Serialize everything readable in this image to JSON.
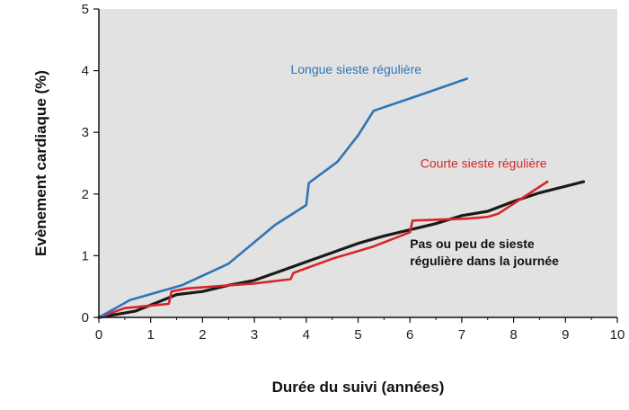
{
  "chart_data": {
    "type": "line",
    "xlabel": "Durée du suivi (années)",
    "ylabel": "Evènement cardiaque (%)",
    "xlim": [
      0,
      10
    ],
    "ylim": [
      0,
      5
    ],
    "xticks": [
      "0",
      "1",
      "2",
      "3",
      "4",
      "5",
      "6",
      "7",
      "8",
      "9",
      "10"
    ],
    "yticks": [
      "0",
      "1",
      "2",
      "3",
      "4",
      "5"
    ],
    "grid": false,
    "background": "#e2e2e2",
    "series": [
      {
        "name": "Longue sieste régulière",
        "color": "#2e75b6",
        "x": [
          0,
          0.6,
          1.6,
          2.5,
          3.4,
          4.0,
          4.05,
          4.6,
          5.0,
          5.3,
          6.0,
          7.1
        ],
        "y": [
          0,
          0.28,
          0.52,
          0.87,
          1.5,
          1.82,
          2.18,
          2.52,
          2.95,
          3.35,
          3.55,
          3.87
        ]
      },
      {
        "name": "Courte sieste régulière",
        "color": "#d7262b",
        "x": [
          0,
          0.5,
          1.35,
          1.4,
          1.7,
          2.2,
          3.0,
          3.7,
          3.75,
          4.5,
          5.3,
          6.0,
          6.05,
          7.1,
          7.5,
          7.7,
          8.65
        ],
        "y": [
          0,
          0.15,
          0.22,
          0.42,
          0.47,
          0.5,
          0.55,
          0.62,
          0.72,
          0.95,
          1.15,
          1.38,
          1.57,
          1.6,
          1.63,
          1.68,
          2.2
        ]
      },
      {
        "name": "Pas ou peu de sieste régulière dans la journée",
        "color": "#1a1a1a",
        "x": [
          0,
          0.7,
          1.0,
          1.5,
          2.0,
          2.5,
          3.0,
          3.5,
          4.0,
          4.5,
          5.0,
          5.5,
          6.0,
          6.5,
          7.0,
          7.5,
          8.0,
          8.5,
          9.35
        ],
        "y": [
          0,
          0.1,
          0.2,
          0.37,
          0.42,
          0.52,
          0.6,
          0.75,
          0.9,
          1.05,
          1.2,
          1.32,
          1.42,
          1.52,
          1.65,
          1.72,
          1.88,
          2.02,
          2.2
        ]
      }
    ],
    "annotations": [
      {
        "series": 0,
        "text": "Longue sieste régulière",
        "color": "#2e75b6",
        "x": 3.7,
        "y": 3.95
      },
      {
        "series": 1,
        "text": "Courte sieste régulière",
        "color": "#d7262b",
        "x": 6.2,
        "y": 2.43
      },
      {
        "series": 2,
        "lines": [
          "Pas ou peu de sieste",
          "régulière dans la journée"
        ],
        "color": "#1a1a1a",
        "x": 6.0,
        "y": 1.12
      }
    ]
  }
}
